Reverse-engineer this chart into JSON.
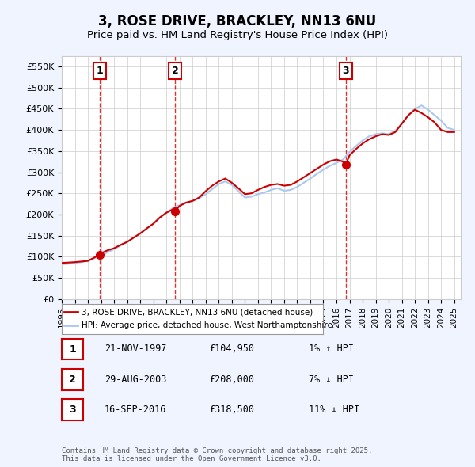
{
  "title": "3, ROSE DRIVE, BRACKLEY, NN13 6NU",
  "subtitle": "Price paid vs. HM Land Registry's House Price Index (HPI)",
  "ylim": [
    0,
    575000
  ],
  "yticks": [
    0,
    50000,
    100000,
    150000,
    200000,
    250000,
    300000,
    350000,
    400000,
    450000,
    500000,
    550000
  ],
  "ytick_labels": [
    "£0",
    "£50K",
    "£100K",
    "£150K",
    "£200K",
    "£250K",
    "£300K",
    "£350K",
    "£400K",
    "£450K",
    "£500K",
    "£550K"
  ],
  "background_color": "#f0f4ff",
  "plot_background": "#ffffff",
  "red_line_color": "#cc0000",
  "blue_line_color": "#aac8f0",
  "vline_color": "#cc0000",
  "sale_dates": [
    1997.89,
    2003.66,
    2016.71
  ],
  "sale_prices": [
    104950,
    208000,
    318500
  ],
  "sale_labels": [
    "1",
    "2",
    "3"
  ],
  "legend_red": "3, ROSE DRIVE, BRACKLEY, NN13 6NU (detached house)",
  "legend_blue": "HPI: Average price, detached house, West Northamptonshire",
  "table_rows": [
    {
      "num": "1",
      "date": "21-NOV-1997",
      "price": "£104,950",
      "hpi": "1% ↑ HPI"
    },
    {
      "num": "2",
      "date": "29-AUG-2003",
      "price": "£208,000",
      "hpi": "7% ↓ HPI"
    },
    {
      "num": "3",
      "date": "16-SEP-2016",
      "price": "£318,500",
      "hpi": "11% ↓ HPI"
    }
  ],
  "footer": "Contains HM Land Registry data © Crown copyright and database right 2025.\nThis data is licensed under the Open Government Licence v3.0.",
  "red_line_x": [
    1995.0,
    1995.5,
    1996.0,
    1996.5,
    1997.0,
    1997.5,
    1997.89,
    1998.0,
    1998.5,
    1999.0,
    1999.5,
    2000.0,
    2000.5,
    2001.0,
    2001.5,
    2002.0,
    2002.5,
    2003.0,
    2003.5,
    2003.66,
    2004.0,
    2004.5,
    2005.0,
    2005.5,
    2006.0,
    2006.5,
    2007.0,
    2007.5,
    2008.0,
    2008.5,
    2009.0,
    2009.5,
    2010.0,
    2010.5,
    2011.0,
    2011.5,
    2012.0,
    2012.5,
    2013.0,
    2013.5,
    2014.0,
    2014.5,
    2015.0,
    2015.5,
    2016.0,
    2016.5,
    2016.71,
    2017.0,
    2017.5,
    2018.0,
    2018.5,
    2019.0,
    2019.5,
    2020.0,
    2020.5,
    2021.0,
    2021.5,
    2022.0,
    2022.5,
    2023.0,
    2023.5,
    2024.0,
    2024.5,
    2025.0
  ],
  "red_line_y": [
    85000,
    86000,
    87000,
    88500,
    90000,
    98000,
    104950,
    108000,
    115000,
    120000,
    128000,
    135000,
    145000,
    155000,
    167000,
    178000,
    193000,
    204000,
    212000,
    208000,
    220000,
    228000,
    232000,
    240000,
    255000,
    268000,
    278000,
    285000,
    275000,
    262000,
    248000,
    250000,
    258000,
    265000,
    270000,
    272000,
    268000,
    270000,
    278000,
    288000,
    298000,
    308000,
    318000,
    326000,
    330000,
    325000,
    318500,
    340000,
    355000,
    368000,
    378000,
    385000,
    390000,
    388000,
    395000,
    415000,
    435000,
    448000,
    440000,
    430000,
    418000,
    400000,
    395000,
    395000
  ],
  "blue_line_x": [
    1995.0,
    1995.5,
    1996.0,
    1996.5,
    1997.0,
    1997.5,
    1998.0,
    1998.5,
    1999.0,
    1999.5,
    2000.0,
    2000.5,
    2001.0,
    2001.5,
    2002.0,
    2002.5,
    2003.0,
    2003.5,
    2004.0,
    2004.5,
    2005.0,
    2005.5,
    2006.0,
    2006.5,
    2007.0,
    2007.5,
    2008.0,
    2008.5,
    2009.0,
    2009.5,
    2010.0,
    2010.5,
    2011.0,
    2011.5,
    2012.0,
    2012.5,
    2013.0,
    2013.5,
    2014.0,
    2014.5,
    2015.0,
    2015.5,
    2016.0,
    2016.5,
    2017.0,
    2017.5,
    2018.0,
    2018.5,
    2019.0,
    2019.5,
    2020.0,
    2020.5,
    2021.0,
    2021.5,
    2022.0,
    2022.5,
    2023.0,
    2023.5,
    2024.0,
    2024.5,
    2025.0
  ],
  "blue_line_y": [
    82000,
    83000,
    85000,
    87000,
    90000,
    96000,
    103000,
    110000,
    118000,
    126000,
    135000,
    145000,
    156000,
    166000,
    178000,
    192000,
    205000,
    215000,
    222000,
    228000,
    232000,
    238000,
    248000,
    260000,
    272000,
    278000,
    270000,
    255000,
    240000,
    242000,
    248000,
    252000,
    258000,
    262000,
    256000,
    258000,
    265000,
    275000,
    285000,
    296000,
    306000,
    315000,
    322000,
    330000,
    348000,
    362000,
    375000,
    385000,
    390000,
    392000,
    390000,
    398000,
    415000,
    435000,
    450000,
    458000,
    448000,
    435000,
    422000,
    405000,
    400000
  ]
}
